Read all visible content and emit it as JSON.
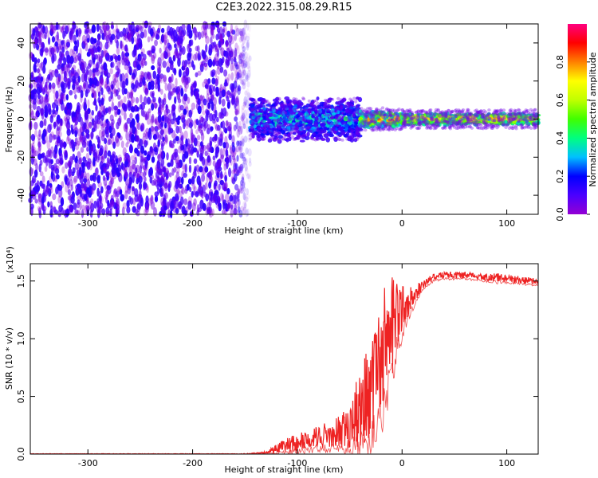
{
  "title": "C2E3.2022.315.08.29.R15",
  "chart_data": [
    {
      "type": "heatmap",
      "xlabel": "Height of straight line (km)",
      "ylabel": "Frequency (Hz)",
      "xlim": [
        -355,
        130
      ],
      "ylim": [
        -50,
        50
      ],
      "x_ticks": [
        -300,
        -200,
        -100,
        0,
        100
      ],
      "x_tick_labels": [
        "-300",
        "-200",
        "-100",
        "0",
        "100"
      ],
      "y_ticks": [
        -40,
        -20,
        0,
        20,
        40
      ],
      "y_tick_labels": [
        "-40",
        "-20",
        "0",
        "20",
        "40"
      ],
      "colorbar": {
        "label": "Normalized spectral amplitude",
        "range": [
          0,
          1
        ],
        "ticks": [
          0.0,
          0.2,
          0.4,
          0.6,
          0.8
        ],
        "tick_labels": [
          "0.0",
          "0.2",
          "0.4",
          "0.6",
          "0.8"
        ],
        "colormap": [
          "#9400d3",
          "#4b00ff",
          "#0000ff",
          "#00c0ff",
          "#00ff80",
          "#40ff00",
          "#c0ff00",
          "#ffff00",
          "#ff8000",
          "#ff0000",
          "#ff0080"
        ]
      },
      "regions": [
        {
          "x": [
            -355,
            -145
          ],
          "freq_range": [
            -50,
            50
          ],
          "amplitude_range": [
            0.0,
            0.15
          ],
          "texture": "noise"
        },
        {
          "x": [
            -145,
            -40
          ],
          "freq_center": 0,
          "freq_halfwidth": 8,
          "amplitude_range": [
            0.1,
            0.45
          ]
        },
        {
          "x": [
            -40,
            0
          ],
          "freq_center": 0,
          "freq_halfwidth": 3,
          "amplitude_range": [
            0.3,
            0.95
          ]
        },
        {
          "x": [
            0,
            130
          ],
          "freq_center": 0,
          "freq_halfwidth": 2,
          "amplitude_range": [
            0.35,
            0.85
          ]
        }
      ],
      "grid": false,
      "legend": "colorbar-right"
    },
    {
      "type": "line",
      "xlabel": "Height of straight line (km)",
      "ylabel": "SNR (10 * v/v)",
      "y_multiplier": "(x10⁴)",
      "xlim": [
        -355,
        130
      ],
      "ylim": [
        0,
        1.65
      ],
      "x_ticks": [
        -300,
        -200,
        -100,
        0,
        100
      ],
      "x_tick_labels": [
        "-300",
        "-200",
        "-100",
        "0",
        "100"
      ],
      "y_ticks": [
        0.0,
        0.5,
        1.0,
        1.5
      ],
      "y_tick_labels": [
        "0.0",
        "0.5",
        "1.0",
        "1.5"
      ],
      "series_color": "#ee2222",
      "x": [
        -355,
        -300,
        -200,
        -150,
        -130,
        -120,
        -110,
        -100,
        -90,
        -80,
        -70,
        -60,
        -50,
        -40,
        -35,
        -30,
        -25,
        -20,
        -15,
        -10,
        -5,
        0,
        5,
        10,
        15,
        20,
        25,
        30,
        35,
        40,
        50,
        60,
        70,
        80,
        90,
        100,
        110,
        120,
        130
      ],
      "y": [
        0.0,
        0.0,
        0.0,
        0.0,
        0.01,
        0.04,
        0.08,
        0.1,
        0.12,
        0.15,
        0.17,
        0.2,
        0.25,
        0.4,
        0.5,
        0.6,
        0.75,
        0.9,
        1.0,
        1.1,
        1.2,
        1.25,
        1.3,
        1.35,
        1.42,
        1.47,
        1.5,
        1.53,
        1.54,
        1.55,
        1.55,
        1.55,
        1.54,
        1.53,
        1.53,
        1.52,
        1.51,
        1.5,
        1.49
      ],
      "noise_band": [
        0.0,
        0.0,
        0.0,
        0.0,
        0.01,
        0.04,
        0.06,
        0.08,
        0.08,
        0.1,
        0.12,
        0.15,
        0.2,
        0.35,
        0.4,
        0.45,
        0.5,
        0.55,
        0.5,
        0.45,
        0.3,
        0.2,
        0.15,
        0.1,
        0.06,
        0.04,
        0.03,
        0.03,
        0.03,
        0.03,
        0.03,
        0.03,
        0.03,
        0.03,
        0.04,
        0.03,
        0.03,
        0.03,
        0.03
      ],
      "grid": false
    }
  ]
}
